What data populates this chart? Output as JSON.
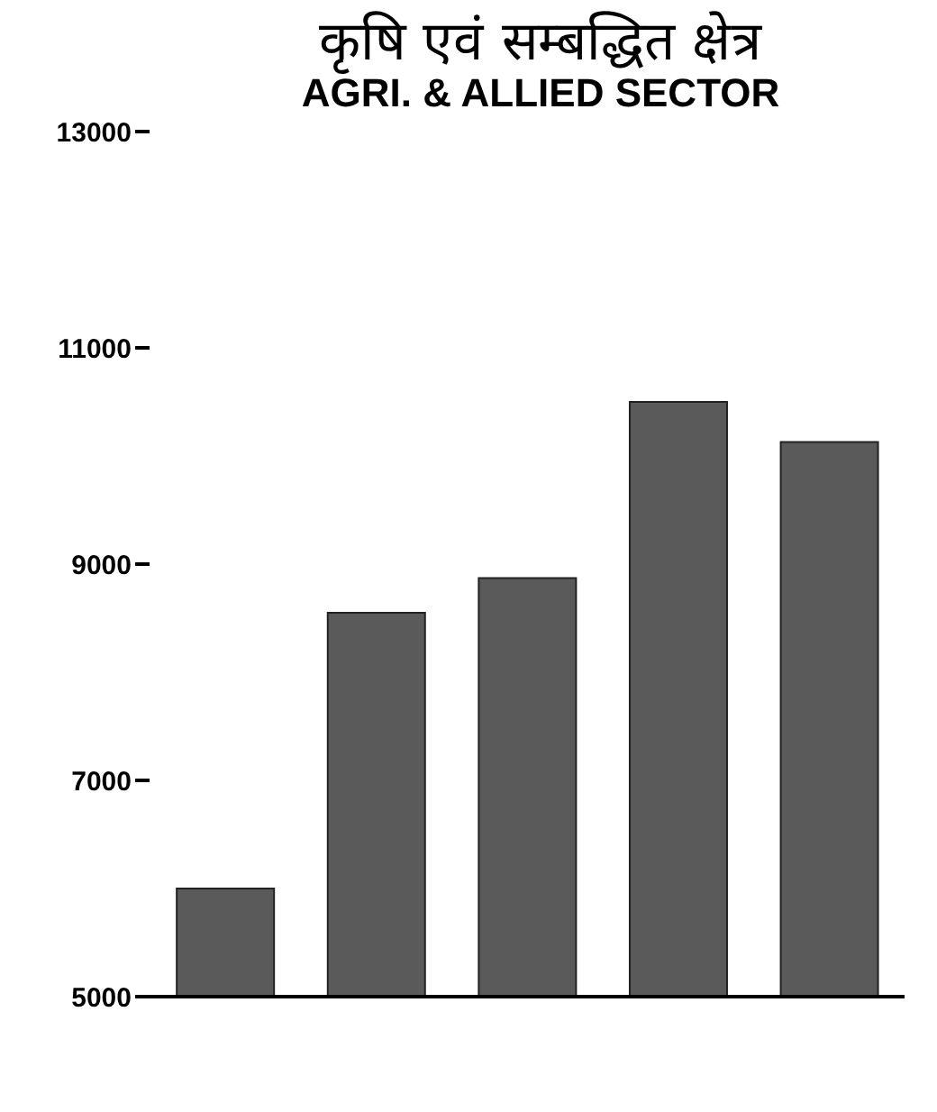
{
  "chart_data": {
    "type": "bar",
    "title": "कृषि एवं सम्बद्धित क्षेत्र",
    "subtitle": "AGRI. & ALLIED SECTOR",
    "categories": [
      null,
      null,
      null,
      null,
      null
    ],
    "values": [
      6000,
      8550,
      8870,
      10500,
      10130
    ],
    "color": "#5a5a5a",
    "ylim": [
      5000,
      13000
    ],
    "yticks": [
      5000,
      7000,
      9000,
      11000,
      13000
    ],
    "grid": false
  }
}
